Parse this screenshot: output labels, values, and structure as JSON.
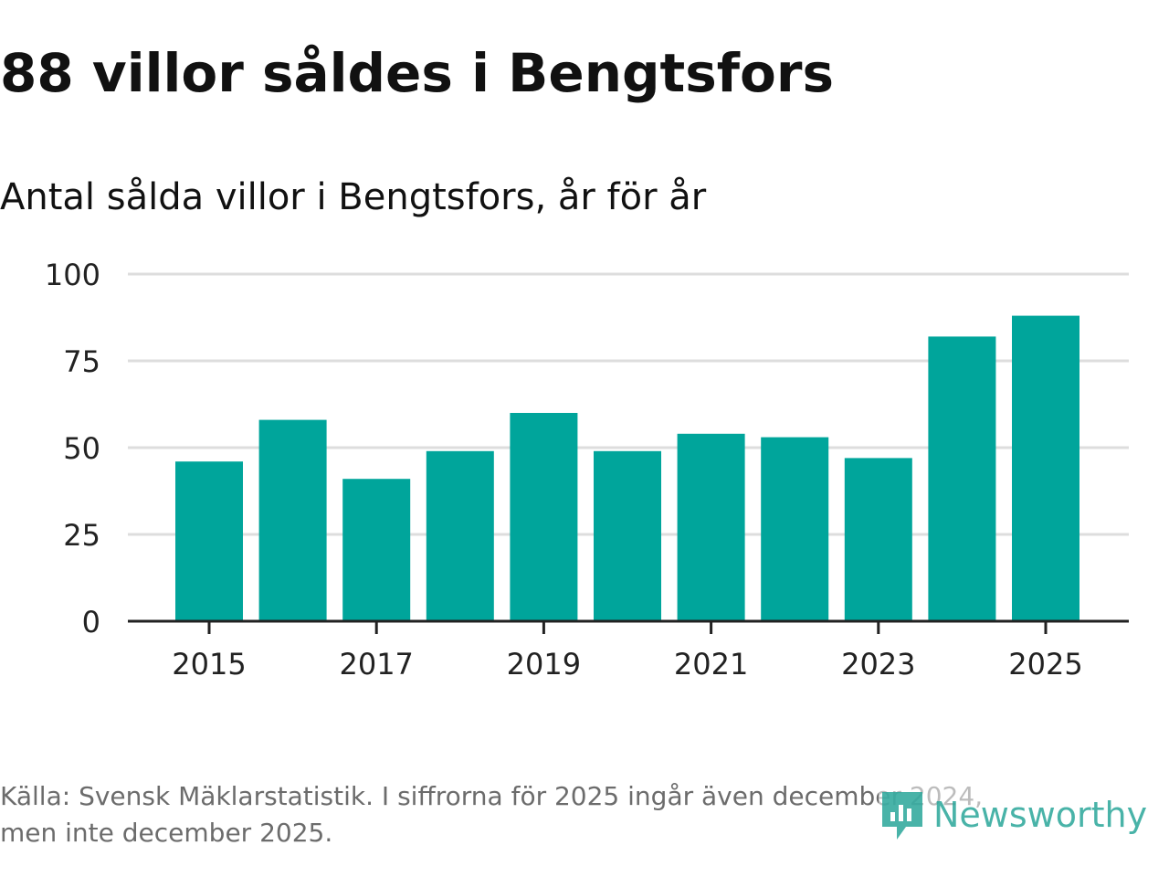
{
  "header": {
    "title": "88 villor såldes i Bengtsfors",
    "subtitle": "Antal sålda villor i Bengtsfors, år för år"
  },
  "footer": {
    "source_line1": "Källa: Svensk Mäklarstatistik. I siffrorna för 2025 ingår även december 2024,",
    "source_line2": "men inte december 2025."
  },
  "logo": {
    "text": "Newsworthy",
    "color": "#2aa69a"
  },
  "colors": {
    "bar": "#00a59b",
    "grid": "#dddddd",
    "axis": "#222222",
    "tick_text": "#222222"
  },
  "chart_data": {
    "type": "bar",
    "title": "Antal sålda villor i Bengtsfors, år för år",
    "xlabel": "",
    "ylabel": "",
    "categories": [
      "2015",
      "2016",
      "2017",
      "2018",
      "2019",
      "2020",
      "2021",
      "2022",
      "2023",
      "2024",
      "2025"
    ],
    "values": [
      46,
      58,
      41,
      49,
      60,
      49,
      54,
      53,
      47,
      82,
      88
    ],
    "x_tick_labels": [
      "2015",
      "2017",
      "2019",
      "2021",
      "2023",
      "2025"
    ],
    "y_ticks": [
      0,
      25,
      50,
      75,
      100
    ],
    "ylim": [
      0,
      100
    ],
    "grid": true
  }
}
